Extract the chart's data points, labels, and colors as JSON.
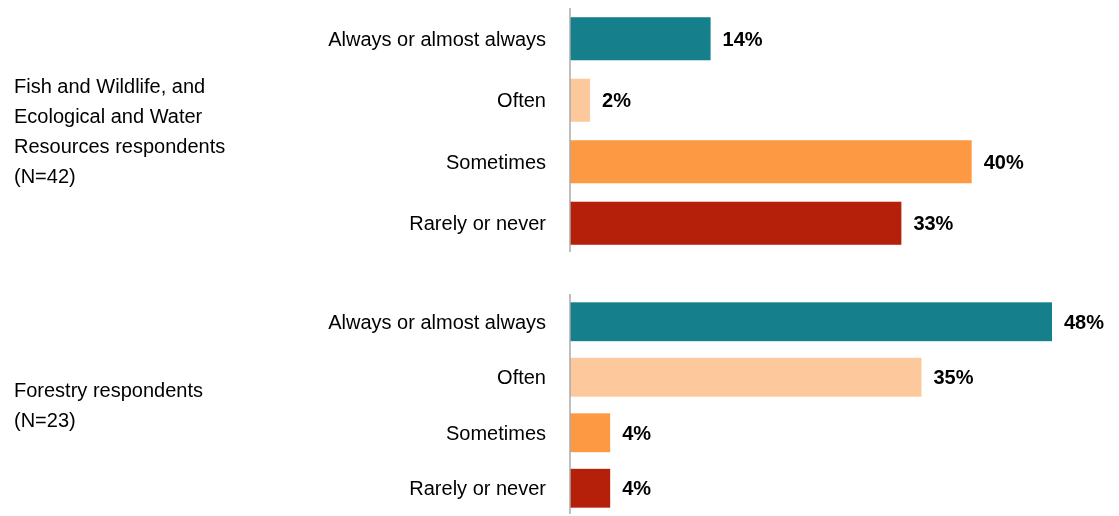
{
  "chart_data": [
    {
      "type": "bar",
      "orientation": "horizontal",
      "ylabel": "Fish and Wildlife, and Ecological and Water Resources respondents (N=42)",
      "categories": [
        "Always or almost always",
        "Often",
        "Sometimes",
        "Rarely or never"
      ],
      "values": [
        14,
        2,
        40,
        33
      ],
      "value_labels": [
        "14%",
        "2%",
        "40%",
        "33%"
      ],
      "colors": [
        "#167f8c",
        "#fdc89c",
        "#fd9843",
        "#b5200b"
      ]
    },
    {
      "type": "bar",
      "orientation": "horizontal",
      "ylabel": "Forestry respondents (N=23)",
      "categories": [
        "Always or almost always",
        "Often",
        "Sometimes",
        "Rarely or never"
      ],
      "values": [
        48,
        35,
        4,
        4
      ],
      "value_labels": [
        "48%",
        "35%",
        "4%",
        "4%"
      ],
      "colors": [
        "#167f8c",
        "#fdc89c",
        "#fd9843",
        "#b5200b"
      ]
    }
  ]
}
